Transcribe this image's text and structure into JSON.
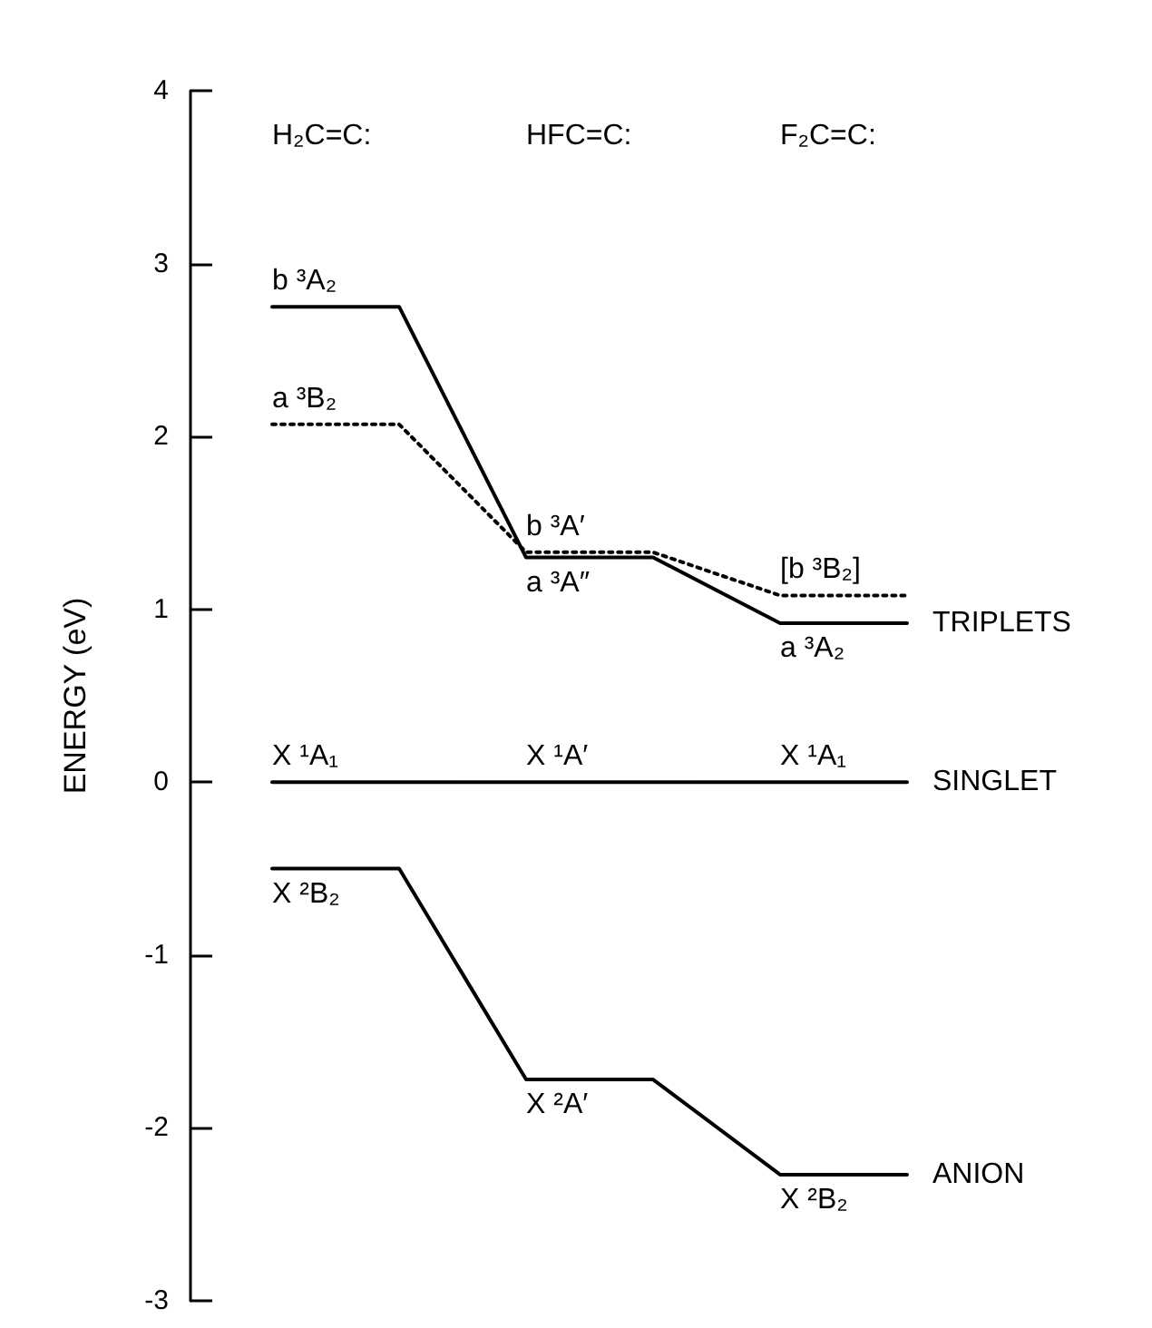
{
  "chart_data": {
    "type": "line",
    "ylabel": "ENERGY (eV)",
    "categories": [
      null,
      null,
      null,
      null,
      null,
      null
    ],
    "series": [
      {
        "color": "#000000",
        "line_style": "solid",
        "values": [
          2.75,
          2.75,
          1.3,
          1.3,
          0.92,
          0.92
        ]
      },
      {
        "color": "#000000",
        "line_style": "dotted",
        "values": [
          2.07,
          2.07,
          1.33,
          1.33,
          1.08,
          1.08
        ]
      },
      {
        "color": "#000000",
        "line_style": "solid",
        "values": [
          0,
          0,
          0,
          0,
          0,
          0
        ]
      },
      {
        "color": "#000000",
        "line_style": "solid",
        "values": [
          -0.5,
          -0.5,
          -1.72,
          -1.72,
          -2.27,
          -2.27
        ]
      }
    ],
    "ylim": [
      -3,
      4
    ],
    "yticks": [
      -3,
      -2,
      -1,
      0,
      1,
      2,
      3,
      4
    ],
    "grid": false,
    "marker": "none",
    "annotations": [
      "H₂C=C:",
      "HFC=C:",
      "F₂C=C:",
      {
        "text": "b ³A₂",
        "y": 2.75
      },
      {
        "text": "a ³B₂",
        "y": 2.07
      },
      {
        "text": "b ³A′",
        "y": 1.33
      },
      {
        "text": "a ³A″",
        "y": 1.3
      },
      {
        "text": "[b ³B₂]",
        "y": 1.08
      },
      {
        "text": "a ³A₂",
        "y": 0.92
      },
      {
        "text": "X ¹A₁",
        "y": 0
      },
      {
        "text": "X ¹A′",
        "y": 0
      },
      {
        "text": "X ¹A₁",
        "y": 0
      },
      {
        "text": "X ²B₂",
        "y": -0.5
      },
      {
        "text": "X ²A′",
        "y": -1.72
      },
      {
        "text": "X ²B₂",
        "y": -2.27
      },
      "TRIPLETS",
      "SINGLET",
      "ANION"
    ]
  }
}
